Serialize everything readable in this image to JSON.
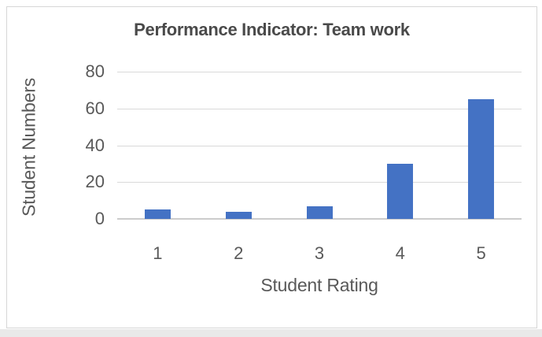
{
  "window": {
    "background": "#ffffff",
    "frame_border_color": "#d6d6d6",
    "bottom_strip_color": "#e9e9e9"
  },
  "chart_data": {
    "type": "bar",
    "title": "Performance Indicator: Team work",
    "categories": [
      "1",
      "2",
      "3",
      "4",
      "5"
    ],
    "values": [
      5,
      4,
      7,
      30,
      65
    ],
    "xlabel": "Student Rating",
    "ylabel": "Student Numbers",
    "ylim": [
      0,
      80
    ],
    "yticks": [
      0,
      20,
      40,
      60,
      80
    ],
    "grid": true,
    "legend": false,
    "bar_color": "#4472C4",
    "gridline_color": "#d9d9d9",
    "axis_line_color": "#cccccc",
    "text_color": "#595959",
    "title_color": "#4a4a4a"
  }
}
